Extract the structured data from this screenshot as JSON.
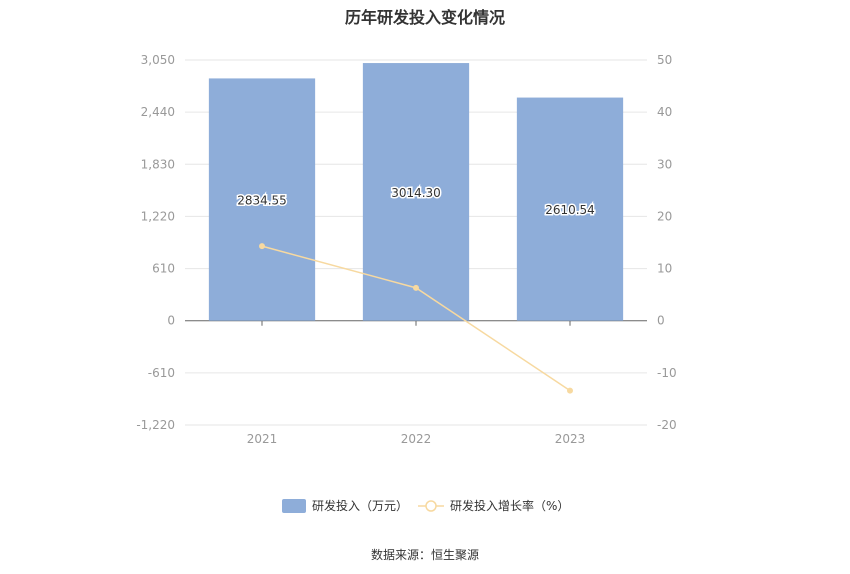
{
  "chart_data": {
    "type": "bar",
    "title": "历年研发投入变化情况",
    "categories": [
      "2021",
      "2022",
      "2023"
    ],
    "series": [
      {
        "name": "研发投入（万元）",
        "type": "bar",
        "axis": "left",
        "values": [
          2834.55,
          3014.3,
          2610.54
        ],
        "labels": [
          "2834.55",
          "3014.30",
          "2610.54"
        ],
        "color": "#8eadd9"
      },
      {
        "name": "研发投入增长率（%）",
        "type": "line",
        "axis": "right",
        "values": [
          14.3,
          6.3,
          -13.4
        ],
        "color": "#f7d9a0"
      }
    ],
    "y_left": {
      "min": -1220,
      "max": 3050,
      "ticks": [
        3050,
        2440,
        1830,
        1220,
        610,
        0,
        -610,
        -1220
      ],
      "tick_labels": [
        "3,050",
        "2,440",
        "1,830",
        "1,220",
        "610",
        "0",
        "-610",
        "-1,220"
      ]
    },
    "y_right": {
      "min": -20,
      "max": 50,
      "ticks": [
        50,
        40,
        30,
        20,
        10,
        0,
        -10,
        -20
      ],
      "tick_labels": [
        "50",
        "40",
        "30",
        "20",
        "10",
        "0",
        "-10",
        "-20"
      ]
    },
    "grid": true,
    "legend_position": "bottom",
    "source": "数据来源：恒生聚源"
  }
}
